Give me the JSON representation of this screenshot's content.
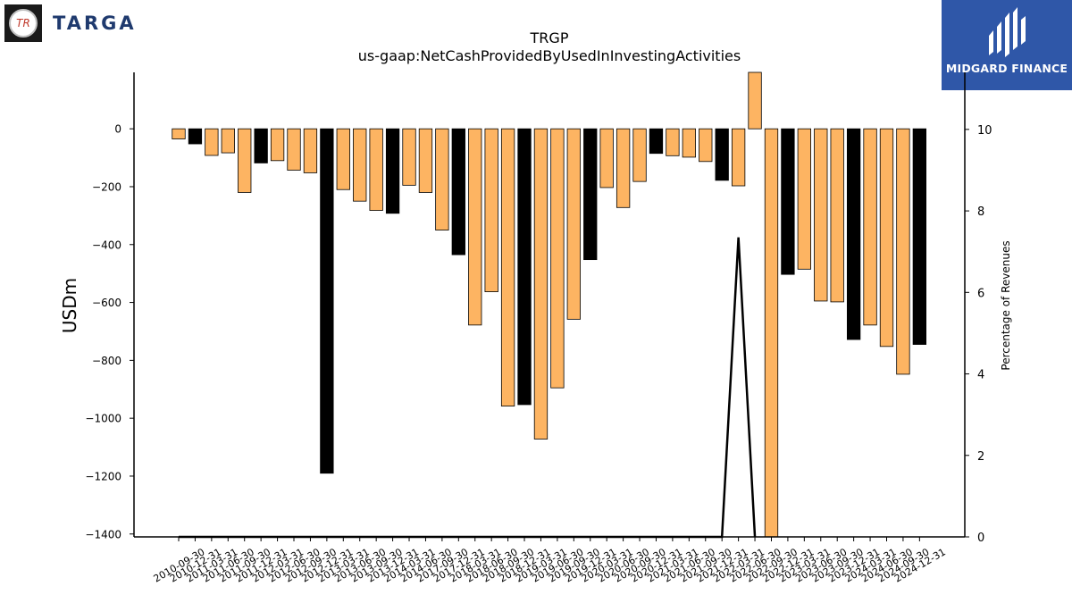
{
  "logos": {
    "left_brand": "TARGA",
    "left_emblem": "TR",
    "right_brand": "MIDGARD FINANCE"
  },
  "chart_data": {
    "type": "bar",
    "title": "TRGP",
    "subtitle": "us-gaap:NetCashProvidedByUsedInInvestingActivities",
    "ylabel": "USDm",
    "y2label": "Percentage of Revenues",
    "ylim": [
      -1410,
      195
    ],
    "y2lim": [
      0,
      11.4
    ],
    "yticks": [
      "0",
      "−200",
      "−400",
      "−600",
      "−800",
      "−1000",
      "−1200",
      "−1400"
    ],
    "ytick_values": [
      0,
      -200,
      -400,
      -600,
      -800,
      -1000,
      -1200,
      -1400
    ],
    "y2ticks": [
      "0",
      "2",
      "4",
      "6",
      "8",
      "10"
    ],
    "y2tick_values": [
      0,
      2,
      4,
      6,
      8,
      10
    ],
    "grid": false,
    "colors": {
      "orange": "#fdb462",
      "black": "#000000",
      "edge": "#000000"
    },
    "categories": [
      "2010-09-30",
      "2010-12-31",
      "2011-03-31",
      "2011-06-30",
      "2011-09-30",
      "2011-12-31",
      "2012-03-31",
      "2012-06-30",
      "2012-09-30",
      "2012-12-31",
      "2013-03-31",
      "2013-06-30",
      "2013-09-30",
      "2013-12-31",
      "2014-03-31",
      "2014-06-30",
      "2017-09-30",
      "2017-12-31",
      "2018-03-31",
      "2018-06-30",
      "2018-09-30",
      "2018-12-31",
      "2019-03-31",
      "2019-06-30",
      "2019-09-30",
      "2019-12-31",
      "2020-03-31",
      "2020-06-30",
      "2020-09-30",
      "2020-12-31",
      "2021-03-31",
      "2021-06-30",
      "2021-09-30",
      "2021-12-31",
      "2022-03-31",
      "2022-06-30",
      "2022-09-30",
      "2022-12-31",
      "2023-03-31",
      "2023-06-30",
      "2023-09-30",
      "2023-12-31",
      "2024-03-31",
      "2024-06-30",
      "2024-09-30",
      "2024-12-31"
    ],
    "values": [
      -35,
      -52,
      -92,
      -83,
      -220,
      -118,
      -110,
      -143,
      -152,
      -1190,
      -210,
      -250,
      -282,
      -292,
      -195,
      -220,
      -350,
      -435,
      -678,
      -563,
      -958,
      -953,
      -1072,
      -895,
      -658,
      -452,
      -203,
      -272,
      -182,
      -85,
      -93,
      -98,
      -113,
      -178,
      -197,
      195,
      -1420,
      -503,
      -485,
      -595,
      -598,
      -728,
      -678,
      -752,
      -848,
      -745
    ],
    "bar_colors": [
      "orange",
      "black",
      "orange",
      "orange",
      "orange",
      "black",
      "orange",
      "orange",
      "orange",
      "black",
      "orange",
      "orange",
      "orange",
      "black",
      "orange",
      "orange",
      "orange",
      "black",
      "orange",
      "orange",
      "orange",
      "black",
      "orange",
      "orange",
      "orange",
      "black",
      "orange",
      "orange",
      "orange",
      "black",
      "orange",
      "orange",
      "orange",
      "black",
      "orange",
      "orange",
      "orange",
      "black",
      "orange",
      "orange",
      "orange",
      "black",
      "orange",
      "orange",
      "orange",
      "black"
    ],
    "line_series": {
      "axis": "right",
      "color": "#000000",
      "points": [
        {
          "x": "2010-09-30",
          "y": 0
        },
        {
          "x": "2014-06-30",
          "y": 0
        },
        {
          "x": "2021-12-31",
          "y": 0
        },
        {
          "x": "2022-03-31",
          "y": 7.35
        },
        {
          "x": "2022-06-30",
          "y": 0
        }
      ]
    }
  }
}
